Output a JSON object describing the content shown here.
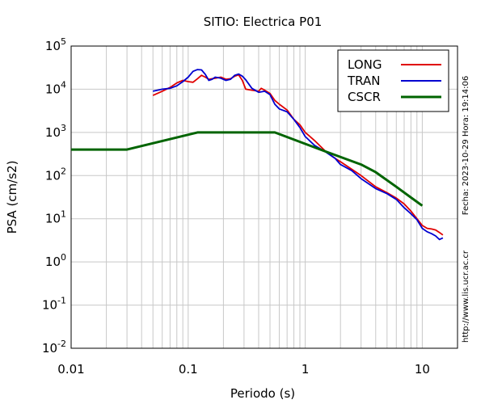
{
  "chart_data": {
    "type": "line",
    "title": "SITIO: Electrica P01",
    "xlabel": "Periodo (s)",
    "ylabel": "PSA (cm/s2)",
    "xscale": "log",
    "yscale": "log",
    "xlim": [
      0.01,
      20
    ],
    "ylim": [
      0.01,
      100000
    ],
    "x_ticks": [
      {
        "value": 0.01,
        "label": "0.01"
      },
      {
        "value": 0.1,
        "label": "0.1"
      },
      {
        "value": 1,
        "label": "1"
      },
      {
        "value": 10,
        "label": "10"
      }
    ],
    "y_ticks": [
      {
        "value": 0.01,
        "base": "10",
        "exp": "-2"
      },
      {
        "value": 0.1,
        "base": "10",
        "exp": "-1"
      },
      {
        "value": 1,
        "base": "10",
        "exp": "0"
      },
      {
        "value": 10,
        "base": "10",
        "exp": "1"
      },
      {
        "value": 100,
        "base": "10",
        "exp": "2"
      },
      {
        "value": 1000,
        "base": "10",
        "exp": "3"
      },
      {
        "value": 10000,
        "base": "10",
        "exp": "4"
      },
      {
        "value": 100000,
        "base": "10",
        "exp": "5"
      }
    ],
    "grid": true,
    "legend_position": "top-right",
    "series": [
      {
        "name": "LONG",
        "color": "#e00000",
        "points": [
          [
            0.05,
            7200
          ],
          [
            0.06,
            9000
          ],
          [
            0.07,
            11000
          ],
          [
            0.08,
            14000
          ],
          [
            0.09,
            16000
          ],
          [
            0.1,
            15000
          ],
          [
            0.11,
            14500
          ],
          [
            0.12,
            17500
          ],
          [
            0.13,
            21000
          ],
          [
            0.14,
            19000
          ],
          [
            0.15,
            17000
          ],
          [
            0.17,
            18000
          ],
          [
            0.19,
            19000
          ],
          [
            0.21,
            17000
          ],
          [
            0.23,
            17500
          ],
          [
            0.25,
            20000
          ],
          [
            0.27,
            21500
          ],
          [
            0.29,
            16000
          ],
          [
            0.31,
            10000
          ],
          [
            0.35,
            9500
          ],
          [
            0.4,
            9000
          ],
          [
            0.42,
            10500
          ],
          [
            0.45,
            9500
          ],
          [
            0.5,
            8000
          ],
          [
            0.55,
            5500
          ],
          [
            0.6,
            4500
          ],
          [
            0.7,
            3300
          ],
          [
            0.8,
            2000
          ],
          [
            0.9,
            1500
          ],
          [
            1,
            1000
          ],
          [
            1.2,
            650
          ],
          [
            1.5,
            360
          ],
          [
            1.8,
            250
          ],
          [
            2,
            210
          ],
          [
            2.5,
            140
          ],
          [
            3,
            100
          ],
          [
            4,
            55
          ],
          [
            5,
            40
          ],
          [
            6,
            30
          ],
          [
            7,
            22
          ],
          [
            8,
            15
          ],
          [
            9,
            10
          ],
          [
            10,
            7
          ],
          [
            11,
            6
          ],
          [
            12,
            5.8
          ],
          [
            13,
            5.5
          ],
          [
            14,
            4.8
          ],
          [
            15,
            4.2
          ]
        ]
      },
      {
        "name": "TRAN",
        "color": "#0000d0",
        "points": [
          [
            0.05,
            9000
          ],
          [
            0.06,
            10000
          ],
          [
            0.07,
            10500
          ],
          [
            0.08,
            12000
          ],
          [
            0.09,
            15000
          ],
          [
            0.1,
            19000
          ],
          [
            0.11,
            26000
          ],
          [
            0.12,
            28500
          ],
          [
            0.13,
            28000
          ],
          [
            0.14,
            22000
          ],
          [
            0.15,
            16000
          ],
          [
            0.16,
            17000
          ],
          [
            0.17,
            19000
          ],
          [
            0.19,
            18000
          ],
          [
            0.21,
            16000
          ],
          [
            0.23,
            17000
          ],
          [
            0.25,
            21000
          ],
          [
            0.27,
            22500
          ],
          [
            0.29,
            20000
          ],
          [
            0.31,
            16500
          ],
          [
            0.35,
            10500
          ],
          [
            0.4,
            8500
          ],
          [
            0.45,
            9000
          ],
          [
            0.5,
            7500
          ],
          [
            0.55,
            4500
          ],
          [
            0.6,
            3500
          ],
          [
            0.7,
            3000
          ],
          [
            0.8,
            2000
          ],
          [
            0.9,
            1300
          ],
          [
            1,
            800
          ],
          [
            1.2,
            500
          ],
          [
            1.5,
            350
          ],
          [
            1.8,
            250
          ],
          [
            2,
            180
          ],
          [
            2.5,
            130
          ],
          [
            3,
            85
          ],
          [
            4,
            50
          ],
          [
            5,
            38
          ],
          [
            6,
            28
          ],
          [
            7,
            18
          ],
          [
            8,
            13
          ],
          [
            9,
            9.5
          ],
          [
            10,
            6
          ],
          [
            11,
            5
          ],
          [
            12,
            4.5
          ],
          [
            13,
            4
          ],
          [
            14,
            3.3
          ],
          [
            15,
            3.6
          ]
        ]
      },
      {
        "name": "CSCR",
        "color": "#006400",
        "points": [
          [
            0.01,
            400
          ],
          [
            0.03,
            400
          ],
          [
            0.12,
            1000
          ],
          [
            0.55,
            1000
          ],
          [
            1.5,
            360
          ],
          [
            3,
            180
          ],
          [
            4,
            120
          ],
          [
            6,
            55
          ],
          [
            10,
            20
          ]
        ]
      }
    ]
  },
  "side_text": {
    "date": "Fecha: 2023-10-29  Hora: 19:14:06",
    "url": "http://www.lis.ucr.ac.cr"
  }
}
